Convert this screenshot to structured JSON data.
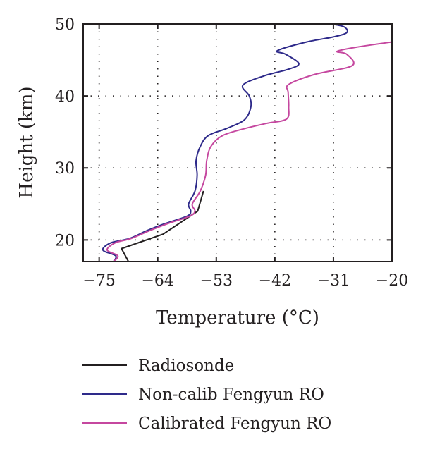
{
  "chart_data": {
    "type": "line",
    "xlabel": "Temperature (°C)",
    "ylabel": "Height (km)",
    "xlim": [
      -78,
      -20
    ],
    "ylim": [
      17,
      50
    ],
    "xticks": [
      -75,
      -64,
      -53,
      -42,
      -31,
      -20
    ],
    "xtick_labels": [
      "−75",
      "−64",
      "−53",
      "−42",
      "−31",
      "−20"
    ],
    "yticks": [
      20,
      30,
      40,
      50
    ],
    "ytick_labels": [
      "20",
      "30",
      "40",
      "50"
    ],
    "grid": true,
    "legend_position": "bottom",
    "series": [
      {
        "name": "Radiosonde",
        "color": "#231f20",
        "points": [
          [
            -69.5,
            17
          ],
          [
            -70.8,
            18.8
          ],
          [
            -63.0,
            20.8
          ],
          [
            -56.5,
            24
          ],
          [
            -55.4,
            26.8
          ]
        ]
      },
      {
        "name": "Non-calib Fengyun RO",
        "color": "#2e2a8a",
        "points": [
          [
            -72.3,
            17
          ],
          [
            -71.9,
            17.8
          ],
          [
            -74.3,
            18.6
          ],
          [
            -72.8,
            19.6
          ],
          [
            -69.3,
            20.2
          ],
          [
            -66.0,
            21.3
          ],
          [
            -62.5,
            22.3
          ],
          [
            -58.5,
            23.3
          ],
          [
            -57.8,
            24.0
          ],
          [
            -58.2,
            25.0
          ],
          [
            -57.0,
            26.8
          ],
          [
            -56.6,
            29.0
          ],
          [
            -56.8,
            31.0
          ],
          [
            -56.0,
            33.0
          ],
          [
            -54.5,
            34.5
          ],
          [
            -51.0,
            35.5
          ],
          [
            -47.7,
            36.7
          ],
          [
            -46.5,
            38.5
          ],
          [
            -46.8,
            40.0
          ],
          [
            -48.0,
            41.5
          ],
          [
            -44.0,
            42.8
          ],
          [
            -39.5,
            43.7
          ],
          [
            -37.5,
            44.5
          ],
          [
            -40.0,
            45.8
          ],
          [
            -41.5,
            46.3
          ],
          [
            -36.0,
            47.5
          ],
          [
            -31.0,
            48.2
          ],
          [
            -28.5,
            48.8
          ],
          [
            -29.0,
            49.6
          ],
          [
            -31.5,
            50
          ]
        ]
      },
      {
        "name": "Calibrated Fengyun RO",
        "color": "#c5479f",
        "points": [
          [
            -72.3,
            17
          ],
          [
            -71.5,
            17.8
          ],
          [
            -73.5,
            18.6
          ],
          [
            -72.0,
            19.6
          ],
          [
            -69.0,
            20.2
          ],
          [
            -65.5,
            21.3
          ],
          [
            -62.0,
            22.3
          ],
          [
            -58.0,
            23.3
          ],
          [
            -57.0,
            24.0
          ],
          [
            -57.5,
            25.0
          ],
          [
            -56.0,
            26.8
          ],
          [
            -55.0,
            29.0
          ],
          [
            -54.8,
            31.0
          ],
          [
            -54.0,
            33.0
          ],
          [
            -51.8,
            34.5
          ],
          [
            -47.5,
            35.5
          ],
          [
            -43.5,
            36.2
          ],
          [
            -39.8,
            36.8
          ],
          [
            -39.4,
            38.5
          ],
          [
            -39.5,
            40.5
          ],
          [
            -39.4,
            41.6
          ],
          [
            -34.5,
            43.0
          ],
          [
            -27.5,
            44.2
          ],
          [
            -28.5,
            45.8
          ],
          [
            -30.3,
            46.2
          ],
          [
            -26.5,
            46.8
          ],
          [
            -20.0,
            47.5
          ]
        ]
      },
      {
        "name": "",
        "color": "#c5479f",
        "points": [
          [
            -20.5,
            50
          ],
          [
            -21.5,
            50
          ]
        ]
      }
    ]
  }
}
